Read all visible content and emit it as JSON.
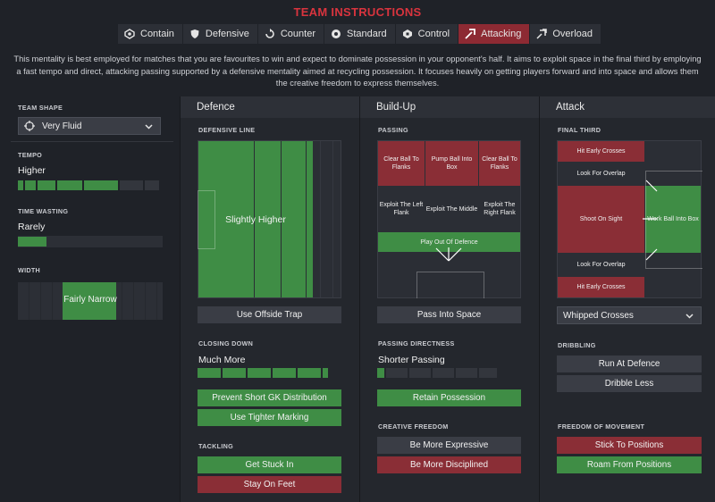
{
  "title": "TEAM INSTRUCTIONS",
  "tabs": [
    {
      "label": "Contain",
      "icon": "contain-icon"
    },
    {
      "label": "Defensive",
      "icon": "shield-icon"
    },
    {
      "label": "Counter",
      "icon": "counter-icon"
    },
    {
      "label": "Standard",
      "icon": "standard-icon"
    },
    {
      "label": "Control",
      "icon": "control-icon"
    },
    {
      "label": "Attacking",
      "icon": "attacking-icon"
    },
    {
      "label": "Overload",
      "icon": "overload-icon"
    }
  ],
  "active_tab": "Attacking",
  "description": "This mentality is best employed for matches that you are favourites to win and expect to dominate possession in your opponent's half. It aims to exploit space in the final third by employing a fast tempo and direct, attacking passing supported by a defensive mentality aimed at recycling possession. It focuses heavily on getting players forward and into space and allows them the creative freedom to express themselves.",
  "colors": {
    "accent": "#d9343e",
    "green": "#3f8d45",
    "red": "#8a2e36",
    "panel": "#24272d"
  },
  "left": {
    "team_shape_label": "TEAM SHAPE",
    "team_shape_value": "Very Fluid",
    "tempo_label": "TEMPO",
    "tempo_value": "Higher",
    "tempo_level": 5,
    "time_wasting_label": "TIME WASTING",
    "time_wasting_value": "Rarely",
    "time_wasting_level": 1,
    "width_label": "WIDTH",
    "width_value": "Fairly Narrow",
    "width_level": 2
  },
  "defence": {
    "heading": "Defence",
    "defensive_line_label": "DEFENSIVE LINE",
    "defensive_line_value": "Slightly Higher",
    "offside_trap": "Use Offside Trap",
    "closing_down_label": "CLOSING DOWN",
    "closing_down_value": "Much More",
    "closing_down_level": 6,
    "prevent_gk": "Prevent Short GK Distribution",
    "tighter_marking": "Use Tighter Marking",
    "tackling_label": "TACKLING",
    "get_stuck_in": "Get Stuck In",
    "stay_on_feet": "Stay On Feet"
  },
  "buildup": {
    "heading": "Build-Up",
    "passing_label": "PASSING",
    "cells": {
      "clear_left": "Clear Ball To Flanks",
      "pump_ball": "Pump Ball Into Box",
      "clear_right": "Clear Ball To Flanks",
      "exploit_left": "Exploit The Left Flank",
      "exploit_middle": "Exploit The Middle",
      "exploit_right": "Exploit The Right Flank",
      "play_out": "Play Out Of Defence"
    },
    "pass_into_space": "Pass Into Space",
    "directness_label": "PASSING DIRECTNESS",
    "directness_value": "Shorter Passing",
    "directness_level": 1,
    "retain_possession": "Retain Possession",
    "creative_label": "CREATIVE FREEDOM",
    "be_more_expressive": "Be More Expressive",
    "be_more_disciplined": "Be More Disciplined"
  },
  "attack": {
    "heading": "Attack",
    "final_third_label": "FINAL THIRD",
    "cells": {
      "hit_early_top": "Hit Early Crosses",
      "overlap_top": "Look For Overlap",
      "shoot_on_sight": "Shoot On Sight",
      "work_ball": "Work Ball Into Box",
      "overlap_bottom": "Look For Overlap",
      "hit_early_bottom": "Hit Early Crosses"
    },
    "crosses_value": "Whipped Crosses",
    "dribbling_label": "DRIBBLING",
    "run_at_defence": "Run At Defence",
    "dribble_less": "Dribble Less",
    "freedom_label": "FREEDOM OF MOVEMENT",
    "stick_to_positions": "Stick To Positions",
    "roam_from_positions": "Roam From Positions"
  }
}
